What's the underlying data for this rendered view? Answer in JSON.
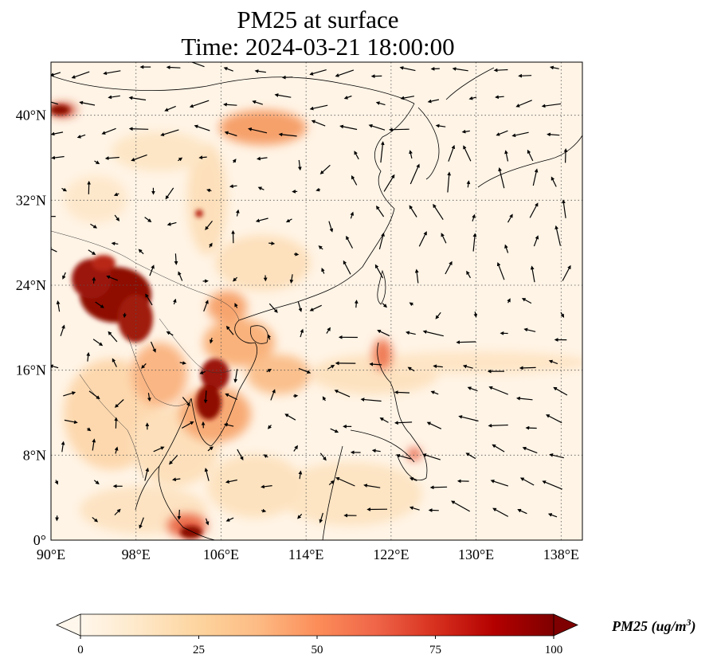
{
  "title": {
    "line1": "PM25 at surface",
    "line2": "Time: 2024-03-21 18:00:00"
  },
  "map": {
    "variable": "PM25",
    "extent": {
      "lon": [
        90,
        140
      ],
      "lat": [
        0,
        45
      ]
    },
    "lon_ticks": [
      "90°E",
      "98°E",
      "106°E",
      "114°E",
      "122°E",
      "130°E",
      "138°E"
    ],
    "lat_ticks": [
      "0°",
      "8°N",
      "16°N",
      "24°N",
      "32°N",
      "40°N"
    ],
    "gridlines": "dotted",
    "overlays": [
      "coastlines",
      "country-borders",
      "wind-vectors"
    ]
  },
  "colorbar": {
    "label_main": "PM25 (ug/m",
    "label_sup": "3",
    "label_end": ")",
    "ticks": [
      "0",
      "25",
      "50",
      "75",
      "100"
    ],
    "range": [
      0,
      100
    ],
    "extend": "both",
    "colormap": "OrRd",
    "colors": [
      "#fff7ec",
      "#fee8c8",
      "#fdd49e",
      "#fdbb84",
      "#fc8d59",
      "#ef6548",
      "#d7301f",
      "#b30000",
      "#7f0000"
    ]
  }
}
